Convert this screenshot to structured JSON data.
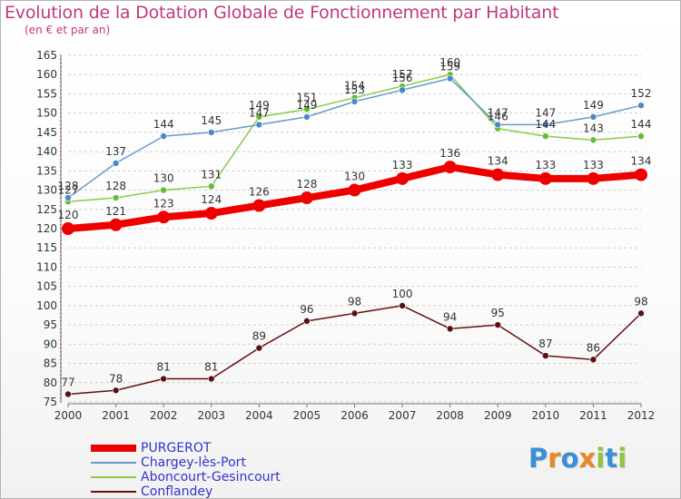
{
  "header": {
    "title": "Evolution de la Dotation Globale de Fonctionnement par Habitant",
    "subtitle": "(en € et par an)"
  },
  "chart_data": {
    "type": "line",
    "title": "Evolution de la Dotation Globale de Fonctionnement par Habitant",
    "subtitle": "(en € et par an)",
    "xlabel": "",
    "ylabel": "",
    "categories": [
      "2000",
      "2001",
      "2002",
      "2003",
      "2004",
      "2005",
      "2006",
      "2007",
      "2008",
      "2009",
      "2010",
      "2011",
      "2012"
    ],
    "ylim": [
      75,
      165
    ],
    "yticks": [
      75,
      80,
      85,
      90,
      95,
      100,
      105,
      110,
      115,
      120,
      125,
      130,
      135,
      140,
      145,
      150,
      155,
      160,
      165
    ],
    "grid": "horizontal dashed",
    "legend_position": "bottom-left",
    "series": [
      {
        "name": "PURGEROT",
        "color": "#ee0000",
        "values": [
          120,
          121,
          123,
          124,
          126,
          128,
          130,
          133,
          136,
          134,
          133,
          133,
          134
        ]
      },
      {
        "name": "Chargey-lès-Port",
        "color": "#6699cc",
        "values": [
          128,
          137,
          144,
          145,
          147,
          149,
          153,
          156,
          159,
          147,
          147,
          149,
          152
        ]
      },
      {
        "name": "Aboncourt-Gesincourt",
        "color": "#88cc44",
        "values": [
          127,
          128,
          130,
          131,
          149,
          151,
          154,
          157,
          160,
          146,
          144,
          143,
          144
        ]
      },
      {
        "name": "Conflandey",
        "color": "#660f0f",
        "values": [
          77,
          78,
          81,
          81,
          89,
          96,
          98,
          100,
          94,
          95,
          87,
          86,
          98
        ]
      }
    ]
  },
  "logo": {
    "letters": [
      "P",
      "r",
      "o",
      "x",
      "i",
      "t",
      "i"
    ],
    "colors": [
      "#3a8fd6",
      "#e8862a",
      "#3a8fd6",
      "#e8862a",
      "#8cc63f",
      "#3a8fd6",
      "#8cc63f"
    ]
  }
}
